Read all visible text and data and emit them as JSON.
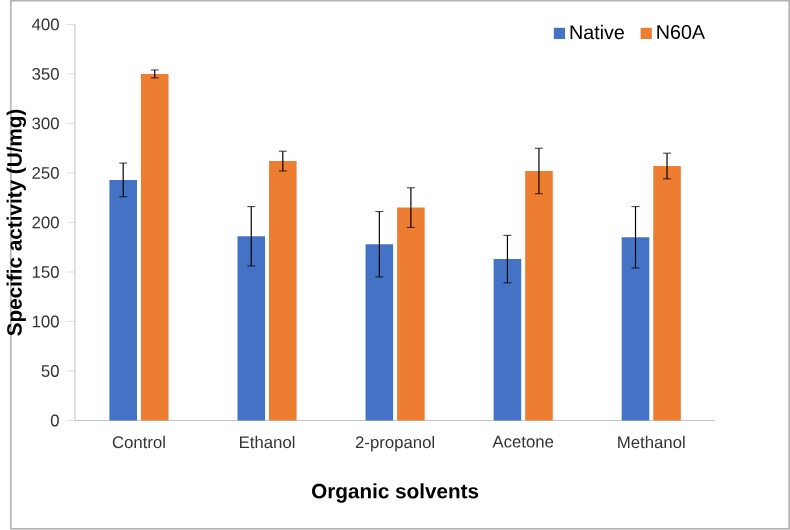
{
  "chart_data": {
    "type": "bar",
    "xlabel": "Organic solvents",
    "ylabel": "Specific activity (U/mg)",
    "categories": [
      "Control",
      "Ethanol",
      "2-propanol",
      "Acetone",
      "Methanol"
    ],
    "series": [
      {
        "name": "Native",
        "color": "#4472c4",
        "values": [
          243,
          186,
          178,
          163,
          185
        ],
        "errors": [
          17,
          30,
          33,
          24,
          31
        ]
      },
      {
        "name": "N60A",
        "color": "#ed7d31",
        "values": [
          350,
          262,
          215,
          252,
          257
        ],
        "errors": [
          4,
          10,
          20,
          23,
          13
        ]
      }
    ],
    "ylim": [
      0,
      400
    ],
    "yticks": [
      0,
      50,
      100,
      150,
      200,
      250,
      300,
      350,
      400
    ],
    "legend": "top right",
    "grid": false
  }
}
